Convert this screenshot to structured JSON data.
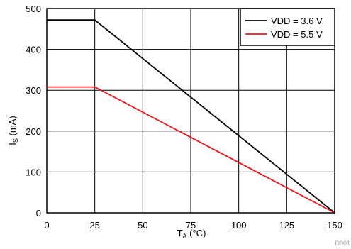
{
  "chart_data": {
    "type": "line",
    "xlabel_main": "T",
    "xlabel_sub": "A",
    "xlabel_unit": " (°C)",
    "ylabel_main": "I",
    "ylabel_sub": "S",
    "ylabel_unit": " (mA)",
    "xlim": [
      0,
      150
    ],
    "ylim": [
      0,
      500
    ],
    "xticks": [
      0,
      25,
      50,
      75,
      100,
      125,
      150
    ],
    "yticks": [
      0,
      100,
      200,
      300,
      400,
      500
    ],
    "grid": true,
    "legend_position": "top-right",
    "series": [
      {
        "name": "VDD = 3.6 V",
        "color": "#000000",
        "x": [
          0,
          25,
          150
        ],
        "y": [
          472,
          472,
          0
        ]
      },
      {
        "name": "VDD = 5.5 V",
        "color": "#e8181f",
        "x": [
          0,
          25,
          150
        ],
        "y": [
          308,
          308,
          0
        ]
      }
    ],
    "figure_code": "D001"
  }
}
